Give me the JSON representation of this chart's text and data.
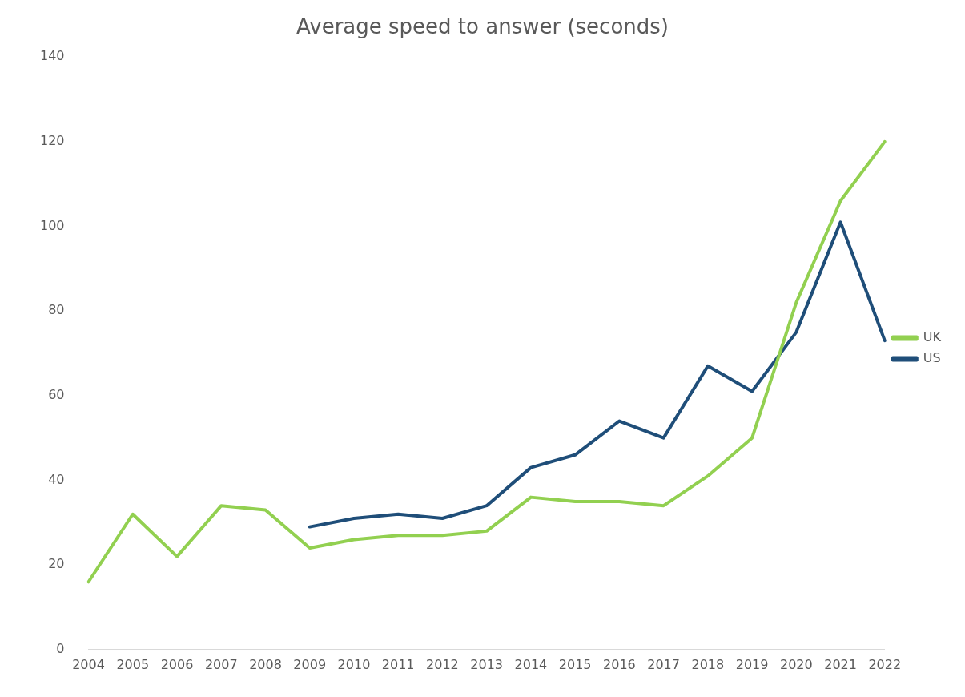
{
  "chart_data": {
    "type": "line",
    "title": "Average speed to answer (seconds)",
    "categories": [
      "2004",
      "2005",
      "2006",
      "2007",
      "2008",
      "2009",
      "2010",
      "2011",
      "2012",
      "2013",
      "2014",
      "2015",
      "2016",
      "2017",
      "2018",
      "2019",
      "2020",
      "2021",
      "2022"
    ],
    "series": [
      {
        "name": "UK",
        "color": "#92d050",
        "values": [
          16,
          32,
          22,
          34,
          33,
          24,
          26,
          27,
          27,
          28,
          36,
          35,
          35,
          34,
          41,
          50,
          82,
          106,
          120
        ]
      },
      {
        "name": "US",
        "color": "#1f4e79",
        "values": [
          null,
          null,
          null,
          null,
          null,
          29,
          31,
          32,
          31,
          34,
          43,
          46,
          54,
          50,
          67,
          61,
          75,
          101,
          73
        ]
      }
    ],
    "ylim": [
      0,
      140
    ],
    "yticks": [
      0,
      20,
      40,
      60,
      80,
      100,
      120,
      140
    ],
    "grid": false,
    "legend": "right",
    "marker": "none"
  }
}
